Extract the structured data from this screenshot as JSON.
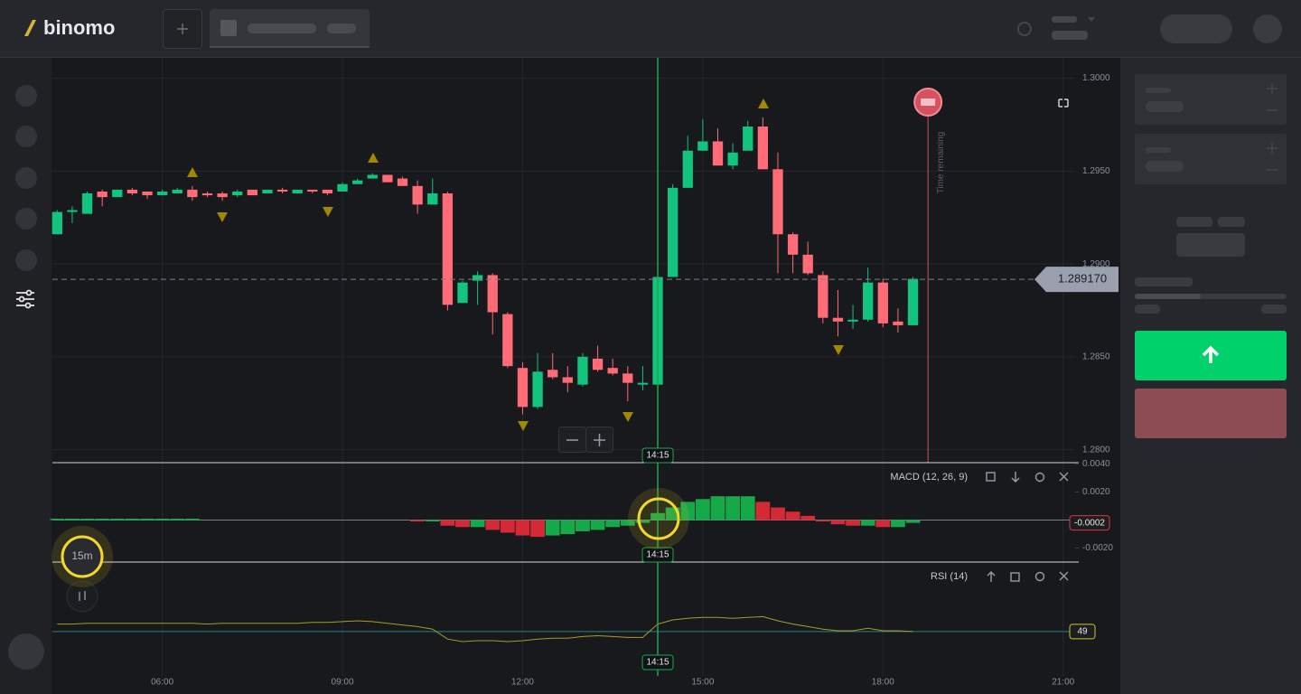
{
  "header": {
    "logo": "binomo"
  },
  "timeframe": "15m",
  "chart_data": [
    {
      "type": "candlestick",
      "x": [
        4.25,
        4.5,
        4.75,
        5,
        5.25,
        5.5,
        5.75,
        6,
        6.25,
        6.5,
        6.75,
        7,
        7.25,
        7.5,
        7.75,
        8,
        8.25,
        8.5,
        8.75,
        9,
        9.25,
        9.5,
        9.75,
        10,
        10.25,
        10.5,
        10.75,
        11,
        11.25,
        11.5,
        11.75,
        12,
        12.25,
        12.5,
        12.75,
        13,
        13.25,
        13.5,
        13.75,
        14,
        14.25,
        14.5,
        14.75,
        15,
        15.25,
        15.5,
        15.75,
        16,
        16.25,
        16.5,
        16.75,
        17,
        17.25,
        17.5,
        17.75,
        18,
        18.25,
        18.5
      ],
      "open": [
        1.2916,
        1.2928,
        1.2927,
        1.2939,
        1.2936,
        1.294,
        1.2939,
        1.2937,
        1.2938,
        1.294,
        1.2938,
        1.2938,
        1.2937,
        1.294,
        1.2938,
        1.294,
        1.2938,
        1.294,
        1.294,
        1.2939,
        1.2943,
        1.2946,
        1.2948,
        1.2946,
        1.2942,
        1.2932,
        1.2938,
        1.2879,
        1.2891,
        1.2894,
        1.2873,
        1.2844,
        1.2823,
        1.2843,
        1.2839,
        1.2835,
        1.2849,
        1.2844,
        1.2841,
        1.2835,
        1.2835,
        1.2893,
        1.2941,
        1.2961,
        1.2966,
        1.2953,
        1.2961,
        1.2974,
        1.2951,
        1.2916,
        1.2905,
        1.2894,
        1.2871,
        1.2869,
        1.287,
        1.289,
        1.2869,
        1.2867
      ],
      "high": [
        1.2929,
        1.2931,
        1.2939,
        1.294,
        1.294,
        1.2941,
        1.2939,
        1.294,
        1.2941,
        1.2942,
        1.2939,
        1.2939,
        1.294,
        1.294,
        1.294,
        1.2941,
        1.294,
        1.294,
        1.294,
        1.2944,
        1.2946,
        1.2949,
        1.2948,
        1.2947,
        1.2945,
        1.2946,
        1.2939,
        1.2891,
        1.2896,
        1.2895,
        1.2874,
        1.2847,
        1.2852,
        1.2852,
        1.2845,
        1.2852,
        1.2856,
        1.2849,
        1.2845,
        1.2845,
        1.2894,
        1.2943,
        1.2969,
        1.2978,
        1.2973,
        1.2965,
        1.2977,
        1.2979,
        1.296,
        1.2917,
        1.2912,
        1.2896,
        1.2886,
        1.2878,
        1.2898,
        1.2892,
        1.2876,
        1.2893
      ],
      "low": [
        1.2916,
        1.2922,
        1.2927,
        1.2931,
        1.2936,
        1.2937,
        1.2935,
        1.2937,
        1.2938,
        1.2934,
        1.2936,
        1.2934,
        1.2936,
        1.2937,
        1.2938,
        1.2938,
        1.2938,
        1.2938,
        1.2937,
        1.2939,
        1.2943,
        1.2946,
        1.2944,
        1.2942,
        1.2927,
        1.2932,
        1.2875,
        1.2879,
        1.2878,
        1.2862,
        1.2844,
        1.2819,
        1.2822,
        1.2838,
        1.2831,
        1.2834,
        1.2842,
        1.284,
        1.2826,
        1.2832,
        1.2834,
        1.2893,
        1.2941,
        1.2961,
        1.2953,
        1.2951,
        1.2961,
        1.2951,
        1.2895,
        1.2895,
        1.2894,
        1.2868,
        1.2861,
        1.2865,
        1.2869,
        1.2866,
        1.2863,
        1.2867
      ],
      "close": [
        1.2928,
        1.2929,
        1.2938,
        1.2936,
        1.294,
        1.2938,
        1.2937,
        1.2939,
        1.294,
        1.2936,
        1.2937,
        1.2936,
        1.2939,
        1.2937,
        1.294,
        1.2939,
        1.294,
        1.2939,
        1.2938,
        1.2943,
        1.2945,
        1.2948,
        1.2944,
        1.2942,
        1.2932,
        1.2938,
        1.2878,
        1.289,
        1.2894,
        1.2874,
        1.2845,
        1.2823,
        1.2842,
        1.2839,
        1.2836,
        1.285,
        1.2843,
        1.2841,
        1.2836,
        1.2836,
        1.2893,
        1.2941,
        1.2961,
        1.2966,
        1.2953,
        1.296,
        1.2974,
        1.2951,
        1.2916,
        1.2905,
        1.2895,
        1.2871,
        1.2869,
        1.287,
        1.289,
        1.2868,
        1.2867,
        1.2892
      ],
      "xlim": [
        4.17,
        21.2
      ],
      "xticks": [
        {
          "value": 6,
          "label": "06:00"
        },
        {
          "value": 9,
          "label": "09:00"
        },
        {
          "value": 12,
          "label": "12:00"
        },
        {
          "value": 15,
          "label": "15:00"
        },
        {
          "value": 18,
          "label": "18:00"
        },
        {
          "value": 21,
          "label": "21:00"
        }
      ],
      "ylim": [
        1.2793,
        1.3011
      ],
      "yticks": [
        {
          "value": 1.3,
          "label": "1.3000"
        },
        {
          "value": 1.295,
          "label": "1.2950"
        },
        {
          "value": 1.29,
          "label": "1.2900"
        },
        {
          "value": 1.285,
          "label": "1.2850"
        },
        {
          "value": 1.28,
          "label": "1.2800"
        }
      ],
      "grid": true,
      "up_color": "#12c47e",
      "down_color": "#ff6b76",
      "current_price": {
        "value": 1.28917,
        "label": "1.289170"
      },
      "cursor": {
        "value": 14.25,
        "label": "14:15"
      },
      "expiry": {
        "value": 18.75,
        "label": "Time remaining"
      }
    },
    {
      "type": "bar",
      "title": "MACD (12, 26, 9)",
      "x": [
        4.25,
        4.5,
        4.75,
        5,
        5.25,
        5.5,
        5.75,
        6,
        6.25,
        6.5,
        6.75,
        7,
        7.25,
        7.5,
        7.75,
        8,
        8.25,
        8.5,
        8.75,
        9,
        9.25,
        9.5,
        9.75,
        10,
        10.25,
        10.5,
        10.75,
        11,
        11.25,
        11.5,
        11.75,
        12,
        12.25,
        12.5,
        12.75,
        13,
        13.25,
        13.5,
        13.75,
        14,
        14.25,
        14.5,
        14.75,
        15,
        15.25,
        15.5,
        15.75,
        16,
        16.25,
        16.5,
        16.75,
        17,
        17.25,
        17.5,
        17.75,
        18,
        18.25,
        18.5
      ],
      "values": [
        0.0001,
        0.0001,
        0.0001,
        0.0001,
        0.0001,
        0.0001,
        0.0001,
        0.0001,
        0.0001,
        0.0001,
        0,
        0,
        0,
        0,
        0,
        0,
        0,
        0,
        0,
        0,
        0,
        0,
        0,
        0,
        -0.0001,
        -0.0001,
        -0.0004,
        -0.0005,
        -0.0005,
        -0.0007,
        -0.0009,
        -0.0011,
        -0.0012,
        -0.0011,
        -0.001,
        -0.0008,
        -0.0007,
        -0.0005,
        -0.0004,
        -0.0002,
        0.0005,
        0.0009,
        0.0013,
        0.0015,
        0.0017,
        0.0017,
        0.0017,
        0.0013,
        0.0009,
        0.0006,
        0.0003,
        -0.0001,
        -0.0003,
        -0.0004,
        -0.0004,
        -0.0005,
        -0.0005,
        -0.0002
      ],
      "xlim": [
        4.17,
        21.2
      ],
      "ylim": [
        -0.003,
        0.0041
      ],
      "yticks": [
        {
          "value": 0.004,
          "label": "0.0040"
        },
        {
          "value": 0.002,
          "label": "0.0020"
        },
        {
          "value": -0.002,
          "label": "-0.0020"
        }
      ],
      "up_color": "#16a94a",
      "down_color": "#d42a35"
    },
    {
      "type": "line",
      "title": "RSI (14)",
      "x": [
        4.25,
        4.5,
        4.75,
        5,
        5.25,
        5.5,
        5.75,
        6,
        6.25,
        6.5,
        6.75,
        7,
        7.25,
        7.5,
        7.75,
        8,
        8.25,
        8.5,
        8.75,
        9,
        9.25,
        9.5,
        9.75,
        10,
        10.25,
        10.5,
        10.75,
        11,
        11.25,
        11.5,
        11.75,
        12,
        12.25,
        12.5,
        12.75,
        13,
        13.25,
        13.5,
        13.75,
        14,
        14.25,
        14.5,
        14.75,
        15,
        15.25,
        15.5,
        15.75,
        16,
        16.25,
        16.5,
        16.75,
        17,
        17.25,
        17.5,
        17.75,
        18,
        18.25,
        18.5
      ],
      "values": [
        58,
        58,
        59,
        59,
        59,
        59,
        59,
        59,
        59,
        59,
        58,
        59,
        59,
        59,
        59,
        59,
        59,
        60,
        60,
        61,
        62,
        61,
        59,
        57,
        55,
        52,
        40,
        37,
        38,
        38,
        37,
        38,
        40,
        41,
        41,
        43,
        44,
        43,
        42,
        42,
        58,
        63,
        65,
        66,
        66,
        65,
        66,
        67,
        62,
        58,
        55,
        52,
        50,
        50,
        53,
        50,
        50,
        49
      ],
      "xlim": [
        4.17,
        21.2
      ],
      "ylim": [
        0,
        100
      ],
      "color": "#a89b28"
    }
  ]
}
